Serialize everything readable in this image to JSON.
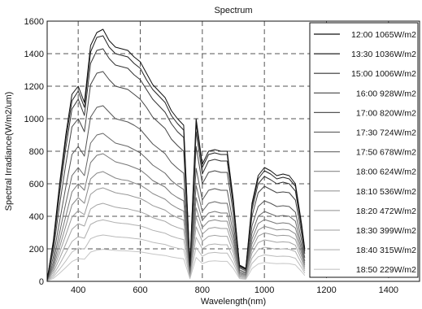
{
  "chart_data": {
    "type": "line",
    "title": "Spectrum",
    "xlabel": "Wavelength(nm)",
    "ylabel": "Spectral Irradiance(W/m2/um)",
    "xlim": [
      300,
      1500
    ],
    "ylim": [
      0,
      1600
    ],
    "xticks": [
      400,
      600,
      800,
      1000,
      1200,
      1400
    ],
    "yticks": [
      0,
      200,
      400,
      600,
      800,
      1000,
      1200,
      1400,
      1600
    ],
    "grid": true,
    "legend_position": "right",
    "x": [
      300,
      320,
      340,
      360,
      380,
      400,
      420,
      440,
      460,
      480,
      500,
      520,
      540,
      560,
      580,
      600,
      620,
      640,
      660,
      680,
      700,
      720,
      740,
      760,
      780,
      800,
      820,
      840,
      860,
      880,
      900,
      920,
      940,
      960,
      980,
      1000,
      1020,
      1040,
      1060,
      1080,
      1100,
      1120,
      1130
    ],
    "series": [
      {
        "name": "12:00 1065W/m2",
        "color": "#111111",
        "values": [
          10,
          250,
          600,
          900,
          1150,
          1200,
          1100,
          1450,
          1530,
          1550,
          1480,
          1440,
          1430,
          1420,
          1380,
          1350,
          1280,
          1210,
          1170,
          1130,
          1050,
          1000,
          960,
          100,
          1000,
          720,
          800,
          810,
          800,
          800,
          500,
          100,
          80,
          480,
          650,
          700,
          680,
          650,
          660,
          650,
          600,
          350,
          200
        ]
      },
      {
        "name": "13:30 1036W/m2",
        "color": "#222222",
        "values": [
          9,
          240,
          580,
          870,
          1110,
          1170,
          1070,
          1410,
          1500,
          1510,
          1440,
          1400,
          1390,
          1380,
          1340,
          1310,
          1240,
          1180,
          1140,
          1100,
          1020,
          970,
          930,
          95,
          970,
          700,
          780,
          790,
          780,
          780,
          485,
          95,
          75,
          465,
          630,
          680,
          660,
          630,
          640,
          630,
          585,
          340,
          195
        ]
      },
      {
        "name": "15:00 1006W/m2",
        "color": "#333333",
        "values": [
          9,
          220,
          540,
          820,
          1060,
          1120,
          1020,
          1340,
          1420,
          1430,
          1370,
          1330,
          1320,
          1310,
          1270,
          1240,
          1180,
          1120,
          1080,
          1040,
          970,
          920,
          885,
          90,
          920,
          660,
          740,
          750,
          740,
          740,
          460,
          90,
          72,
          440,
          600,
          645,
          625,
          600,
          610,
          600,
          555,
          320,
          185
        ]
      },
      {
        "name": "16:00  928W/m2",
        "color": "#444444",
        "values": [
          8,
          190,
          470,
          720,
          950,
          1000,
          920,
          1210,
          1280,
          1290,
          1240,
          1200,
          1190,
          1180,
          1150,
          1120,
          1070,
          1010,
          975,
          940,
          875,
          835,
          800,
          82,
          830,
          600,
          670,
          680,
          670,
          670,
          415,
          82,
          65,
          400,
          545,
          585,
          565,
          545,
          550,
          545,
          500,
          290,
          170
        ]
      },
      {
        "name": "17:00  820W/m2",
        "color": "#555555",
        "values": [
          7,
          150,
          370,
          580,
          780,
          830,
          770,
          1010,
          1070,
          1080,
          1040,
          1000,
          990,
          980,
          960,
          935,
          890,
          845,
          815,
          785,
          730,
          695,
          665,
          70,
          695,
          500,
          560,
          570,
          560,
          560,
          350,
          70,
          55,
          340,
          460,
          495,
          480,
          460,
          465,
          460,
          425,
          250,
          145
        ]
      },
      {
        "name": "17:30  724W/m2",
        "color": "#666666",
        "values": [
          6,
          120,
          300,
          480,
          650,
          700,
          650,
          850,
          900,
          910,
          880,
          850,
          840,
          830,
          810,
          790,
          755,
          715,
          690,
          665,
          620,
          590,
          565,
          60,
          590,
          430,
          480,
          490,
          480,
          480,
          300,
          60,
          48,
          295,
          400,
          430,
          415,
          400,
          405,
          400,
          370,
          215,
          125
        ]
      },
      {
        "name": "17:50  678W/m2",
        "color": "#777777",
        "values": [
          5,
          100,
          250,
          400,
          550,
          600,
          560,
          730,
          775,
          785,
          760,
          735,
          725,
          715,
          700,
          685,
          655,
          620,
          600,
          580,
          540,
          515,
          495,
          52,
          515,
          375,
          420,
          430,
          420,
          420,
          265,
          52,
          42,
          260,
          355,
          380,
          368,
          355,
          360,
          355,
          328,
          192,
          112
        ]
      },
      {
        "name": "18:00  624W/m2",
        "color": "#888888",
        "values": [
          5,
          85,
          210,
          340,
          470,
          515,
          480,
          630,
          665,
          675,
          655,
          635,
          625,
          620,
          605,
          592,
          568,
          540,
          522,
          505,
          472,
          450,
          432,
          46,
          452,
          330,
          370,
          378,
          370,
          370,
          233,
          46,
          37,
          230,
          315,
          338,
          328,
          316,
          320,
          316,
          292,
          172,
          100
        ]
      },
      {
        "name": "18:10  536W/m2",
        "color": "#999999",
        "values": [
          4,
          70,
          175,
          285,
          395,
          435,
          410,
          535,
          565,
          575,
          560,
          545,
          538,
          532,
          520,
          510,
          490,
          466,
          452,
          438,
          410,
          392,
          377,
          40,
          395,
          290,
          325,
          332,
          325,
          325,
          205,
          40,
          32,
          202,
          278,
          298,
          290,
          280,
          283,
          280,
          258,
          152,
          89
        ]
      },
      {
        "name": "18:20  472W/m2",
        "color": "#a4a4a4",
        "values": [
          4,
          55,
          140,
          230,
          320,
          355,
          340,
          445,
          470,
          480,
          468,
          456,
          450,
          446,
          436,
          428,
          412,
          392,
          380,
          369,
          346,
          331,
          319,
          34,
          335,
          246,
          277,
          283,
          277,
          277,
          175,
          34,
          27,
          173,
          238,
          255,
          248,
          240,
          243,
          240,
          222,
          131,
          77
        ]
      },
      {
        "name": "18:30  399W/m2",
        "color": "#b0b0b0",
        "values": [
          3,
          40,
          105,
          175,
          245,
          275,
          265,
          350,
          370,
          378,
          370,
          361,
          357,
          354,
          347,
          341,
          329,
          314,
          305,
          296,
          278,
          266,
          257,
          28,
          271,
          200,
          225,
          230,
          225,
          225,
          143,
          28,
          22,
          142,
          195,
          210,
          204,
          197,
          200,
          197,
          183,
          108,
          64
        ]
      },
      {
        "name": "18:40  315W/m2",
        "color": "#bbbbbb",
        "values": [
          3,
          28,
          75,
          125,
          180,
          205,
          198,
          262,
          278,
          285,
          280,
          274,
          271,
          269,
          264,
          260,
          251,
          240,
          233,
          227,
          213,
          204,
          197,
          22,
          208,
          154,
          174,
          178,
          174,
          174,
          111,
          22,
          17,
          110,
          151,
          163,
          158,
          153,
          155,
          153,
          142,
          84,
          50
        ]
      },
      {
        "name": "18:50  229W/m2",
        "color": "#c6c6c6",
        "values": [
          2,
          18,
          50,
          85,
          122,
          140,
          136,
          180,
          192,
          197,
          194,
          190,
          188,
          187,
          184,
          181,
          175,
          168,
          163,
          159,
          150,
          144,
          139,
          16,
          147,
          109,
          123,
          126,
          123,
          123,
          79,
          16,
          12,
          78,
          107,
          116,
          112,
          109,
          110,
          109,
          101,
          60,
          36
        ]
      }
    ]
  }
}
